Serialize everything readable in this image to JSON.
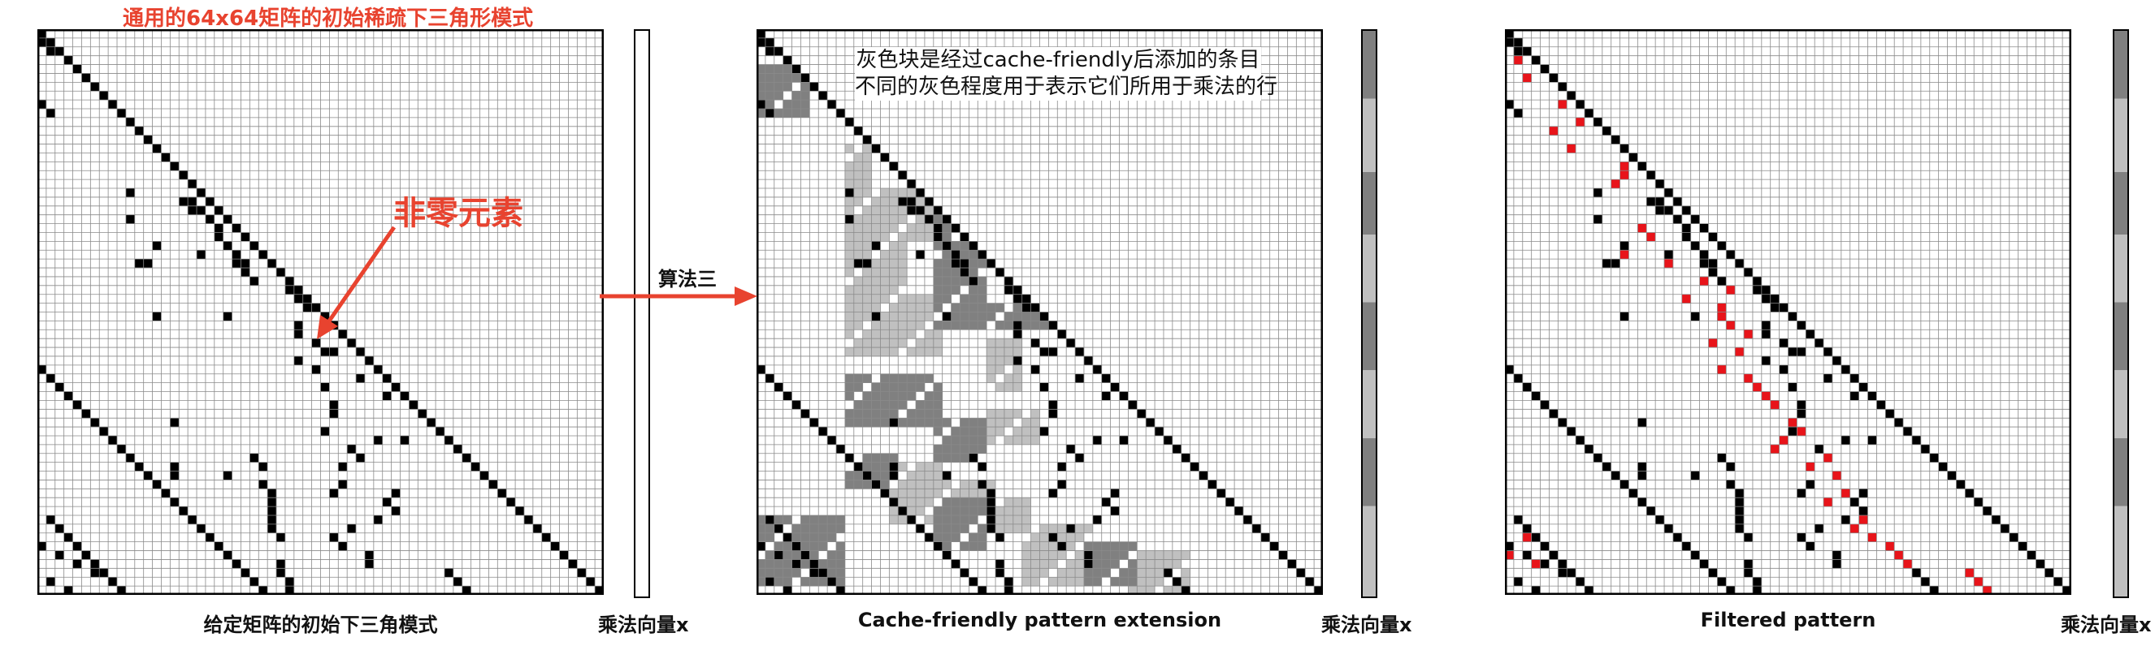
{
  "colors": {
    "nonzero": "#000000",
    "added_dark": "#808080",
    "added_light": "#c0c0c0",
    "filtered_red": "#e8141a",
    "annotation_red": "#e8432f",
    "grid_line": "#8a8a8a"
  },
  "figure": {
    "top_title": "通用的64x64矩阵的初始稀疏下三角形模式",
    "nonzero_label": "非零元素",
    "algorithm_label": "算法三",
    "gray_note_line1": "灰色块是经过cache-friendly后添加的条目",
    "gray_note_line2": "不同的灰色程度用于表示它们所用于乘法的行",
    "captions": {
      "panel1": "给定矩阵的初始下三角模式",
      "panel2": "Cache-friendly pattern extension",
      "panel3": "Filtered  pattern"
    },
    "vector_label": "乘法向量x"
  },
  "matrix": {
    "size": 64,
    "off_diagonal_nonzeros": [
      [
        1,
        0
      ],
      [
        2,
        1
      ],
      [
        8,
        0
      ],
      [
        9,
        1
      ],
      [
        18,
        10
      ],
      [
        19,
        16
      ],
      [
        19,
        17
      ],
      [
        20,
        17
      ],
      [
        20,
        18
      ],
      [
        21,
        10
      ],
      [
        21,
        19
      ],
      [
        22,
        20
      ],
      [
        23,
        20
      ],
      [
        24,
        13
      ],
      [
        24,
        21
      ],
      [
        25,
        18
      ],
      [
        25,
        22
      ],
      [
        26,
        11
      ],
      [
        26,
        12
      ],
      [
        26,
        22
      ],
      [
        26,
        23
      ],
      [
        27,
        23
      ],
      [
        28,
        24
      ],
      [
        29,
        28
      ],
      [
        30,
        29
      ],
      [
        30,
        30
      ],
      [
        31,
        31
      ],
      [
        31,
        30
      ],
      [
        32,
        21
      ],
      [
        32,
        13
      ],
      [
        33,
        29
      ],
      [
        34,
        29
      ],
      [
        35,
        31
      ],
      [
        36,
        32
      ],
      [
        36,
        33
      ],
      [
        37,
        29
      ],
      [
        38,
        31
      ],
      [
        39,
        36
      ],
      [
        40,
        32
      ],
      [
        41,
        39
      ],
      [
        42,
        33
      ],
      [
        43,
        33
      ],
      [
        44,
        15
      ],
      [
        45,
        32
      ],
      [
        46,
        38
      ],
      [
        46,
        41
      ],
      [
        47,
        35
      ],
      [
        48,
        36
      ],
      [
        49,
        15
      ],
      [
        49,
        34
      ],
      [
        50,
        15
      ],
      [
        50,
        21
      ],
      [
        51,
        34
      ],
      [
        52,
        33
      ],
      [
        52,
        40
      ],
      [
        53,
        39
      ],
      [
        54,
        40
      ],
      [
        55,
        38
      ],
      [
        56,
        35
      ],
      [
        57,
        33
      ],
      [
        58,
        34
      ],
      [
        59,
        37
      ],
      [
        60,
        37
      ],
      [
        61,
        46
      ],
      [
        62,
        47
      ],
      [
        63,
        48
      ],
      [
        48,
        24
      ],
      [
        49,
        25
      ],
      [
        51,
        25
      ],
      [
        52,
        26
      ],
      [
        53,
        26
      ],
      [
        54,
        26
      ],
      [
        55,
        26
      ],
      [
        56,
        26
      ],
      [
        57,
        27
      ],
      [
        60,
        27
      ],
      [
        61,
        27
      ],
      [
        62,
        28
      ],
      [
        63,
        28
      ],
      [
        38,
        0
      ],
      [
        39,
        1
      ],
      [
        40,
        2
      ],
      [
        41,
        3
      ],
      [
        42,
        4
      ],
      [
        43,
        5
      ],
      [
        44,
        6
      ],
      [
        45,
        7
      ],
      [
        46,
        8
      ],
      [
        47,
        9
      ],
      [
        48,
        10
      ],
      [
        49,
        11
      ],
      [
        50,
        12
      ],
      [
        51,
        13
      ],
      [
        52,
        14
      ],
      [
        53,
        15
      ],
      [
        54,
        16
      ],
      [
        55,
        17
      ],
      [
        56,
        18
      ],
      [
        57,
        19
      ],
      [
        58,
        20
      ],
      [
        59,
        21
      ],
      [
        60,
        22
      ],
      [
        61,
        23
      ],
      [
        62,
        24
      ],
      [
        63,
        25
      ],
      [
        55,
        1
      ],
      [
        56,
        2
      ],
      [
        57,
        3
      ],
      [
        58,
        4
      ],
      [
        59,
        5
      ],
      [
        60,
        6
      ],
      [
        61,
        7
      ],
      [
        62,
        8
      ],
      [
        63,
        9
      ],
      [
        58,
        0
      ],
      [
        59,
        2
      ],
      [
        60,
        4
      ],
      [
        61,
        6
      ],
      [
        62,
        1
      ],
      [
        63,
        3
      ]
    ],
    "gray_dark_blocks": [
      [
        4,
        9,
        0,
        5
      ],
      [
        13,
        19,
        20,
        25
      ],
      [
        20,
        31,
        20,
        25
      ],
      [
        31,
        33,
        20,
        32
      ],
      [
        39,
        44,
        10,
        20
      ],
      [
        48,
        51,
        10,
        15
      ],
      [
        44,
        48,
        20,
        25
      ],
      [
        53,
        58,
        20,
        25
      ],
      [
        55,
        62,
        0,
        9
      ],
      [
        58,
        62,
        37,
        42
      ]
    ],
    "gray_light_blocks": [
      [
        13,
        18,
        10,
        12
      ],
      [
        18,
        23,
        10,
        20
      ],
      [
        23,
        30,
        10,
        16
      ],
      [
        30,
        36,
        10,
        20
      ],
      [
        35,
        40,
        26,
        29
      ],
      [
        43,
        46,
        26,
        31
      ],
      [
        49,
        53,
        15,
        20
      ],
      [
        51,
        55,
        15,
        26
      ],
      [
        53,
        56,
        25,
        30
      ],
      [
        56,
        62,
        30,
        37
      ],
      [
        59,
        63,
        42,
        48
      ]
    ],
    "filtered_red_entries": [
      [
        3,
        1
      ],
      [
        5,
        2
      ],
      [
        8,
        6
      ],
      [
        10,
        8
      ],
      [
        11,
        5
      ],
      [
        13,
        7
      ],
      [
        15,
        13
      ],
      [
        16,
        13
      ],
      [
        17,
        12
      ],
      [
        22,
        15
      ],
      [
        23,
        16
      ],
      [
        25,
        13
      ],
      [
        26,
        18
      ],
      [
        28,
        22
      ],
      [
        29,
        25
      ],
      [
        30,
        20
      ],
      [
        31,
        24
      ],
      [
        32,
        24
      ],
      [
        33,
        25
      ],
      [
        34,
        27
      ],
      [
        35,
        23
      ],
      [
        36,
        26
      ],
      [
        38,
        24
      ],
      [
        39,
        27
      ],
      [
        40,
        28
      ],
      [
        41,
        29
      ],
      [
        42,
        30
      ],
      [
        44,
        32
      ],
      [
        45,
        33
      ],
      [
        46,
        31
      ],
      [
        47,
        30
      ],
      [
        48,
        36
      ],
      [
        49,
        34
      ],
      [
        50,
        37
      ],
      [
        52,
        38
      ],
      [
        53,
        36
      ],
      [
        55,
        40
      ],
      [
        56,
        39
      ],
      [
        57,
        41
      ],
      [
        58,
        43
      ],
      [
        59,
        44
      ],
      [
        60,
        45
      ],
      [
        61,
        52
      ],
      [
        62,
        53
      ],
      [
        63,
        54
      ],
      [
        57,
        2
      ],
      [
        59,
        0
      ],
      [
        60,
        3
      ]
    ]
  }
}
